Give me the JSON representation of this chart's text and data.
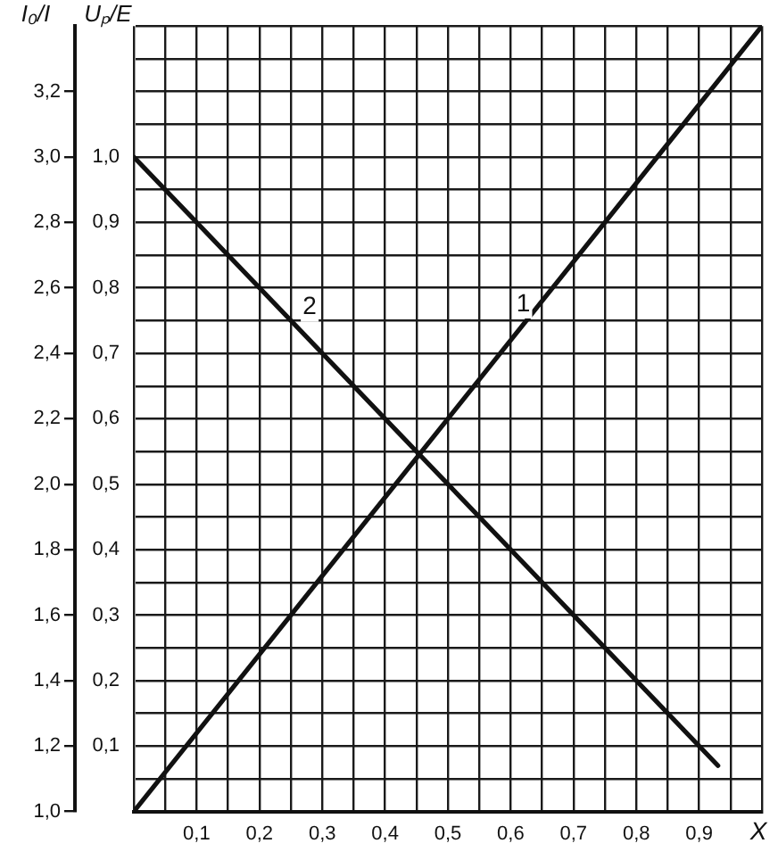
{
  "chart_data": {
    "type": "line",
    "xlabel": "X",
    "ylabel": "I₀/I",
    "y2label": "Uₚ/E",
    "series": [
      {
        "color": "#111111",
        "x": [
          0,
          1.0
        ],
        "values": [
          1.0,
          3.4
        ]
      },
      {
        "color": "#111111",
        "axis": "y2",
        "x": [
          0,
          0.93
        ],
        "values": [
          1.0,
          0.07
        ]
      }
    ],
    "xlim": [
      0,
      1.0
    ],
    "xticks": [
      {
        "value": 0,
        "label": null
      },
      {
        "value": 0.05,
        "label": null
      },
      {
        "value": 0.1,
        "label": "0,1"
      },
      {
        "value": 0.15,
        "label": null
      },
      {
        "value": 0.2,
        "label": "0,2"
      },
      {
        "value": 0.25,
        "label": null
      },
      {
        "value": 0.3,
        "label": "0,3"
      },
      {
        "value": 0.35,
        "label": null
      },
      {
        "value": 0.4,
        "label": "0,4"
      },
      {
        "value": 0.45,
        "label": null
      },
      {
        "value": 0.5,
        "label": "0,5"
      },
      {
        "value": 0.55,
        "label": null
      },
      {
        "value": 0.6,
        "label": "0,6"
      },
      {
        "value": 0.65,
        "label": null
      },
      {
        "value": 0.7,
        "label": "0,7"
      },
      {
        "value": 0.75,
        "label": null
      },
      {
        "value": 0.8,
        "label": "0,8"
      },
      {
        "value": 0.85,
        "label": null
      },
      {
        "value": 0.9,
        "label": "0,9"
      },
      {
        "value": 0.95,
        "label": null
      },
      {
        "value": 1.0,
        "label": null
      }
    ],
    "ylim": [
      1.0,
      3.4
    ],
    "yticks": [
      {
        "value": 1.0,
        "label": "1,0"
      },
      {
        "value": 1.1,
        "label": null
      },
      {
        "value": 1.2,
        "label": "1,2"
      },
      {
        "value": 1.3,
        "label": null
      },
      {
        "value": 1.4,
        "label": "1,4"
      },
      {
        "value": 1.5,
        "label": null
      },
      {
        "value": 1.6,
        "label": "1,6"
      },
      {
        "value": 1.7,
        "label": null
      },
      {
        "value": 1.8,
        "label": "1,8"
      },
      {
        "value": 1.9,
        "label": null
      },
      {
        "value": 2.0,
        "label": "2,0"
      },
      {
        "value": 2.1,
        "label": null
      },
      {
        "value": 2.2,
        "label": "2,2"
      },
      {
        "value": 2.3,
        "label": null
      },
      {
        "value": 2.4,
        "label": "2,4"
      },
      {
        "value": 2.5,
        "label": null
      },
      {
        "value": 2.6,
        "label": "2,6"
      },
      {
        "value": 2.7,
        "label": null
      },
      {
        "value": 2.8,
        "label": "2,8"
      },
      {
        "value": 2.9,
        "label": null
      },
      {
        "value": 3.0,
        "label": "3,0"
      },
      {
        "value": 3.1,
        "label": null
      },
      {
        "value": 3.2,
        "label": "3,2"
      },
      {
        "value": 3.3,
        "label": null
      },
      {
        "value": 3.4,
        "label": null
      }
    ],
    "y2lim": [
      0,
      1.2
    ],
    "y2ticks": [
      {
        "value": 0.1,
        "label": "0,1"
      },
      {
        "value": 0.2,
        "label": "0,2"
      },
      {
        "value": 0.3,
        "label": "0,3"
      },
      {
        "value": 0.4,
        "label": "0,4"
      },
      {
        "value": 0.5,
        "label": "0,5"
      },
      {
        "value": 0.6,
        "label": "0,6"
      },
      {
        "value": 0.7,
        "label": "0,7"
      },
      {
        "value": 0.8,
        "label": "0,8"
      },
      {
        "value": 0.9,
        "label": "0,9"
      },
      {
        "value": 1.0,
        "label": "1,0"
      }
    ],
    "annotations": [
      {
        "text": "1",
        "x": 0.62,
        "y": 2.55
      },
      {
        "text": "2",
        "x": 0.28,
        "y": 2.54
      }
    ],
    "grid": true,
    "legend": false,
    "marker": "none",
    "line_style": "solid"
  }
}
